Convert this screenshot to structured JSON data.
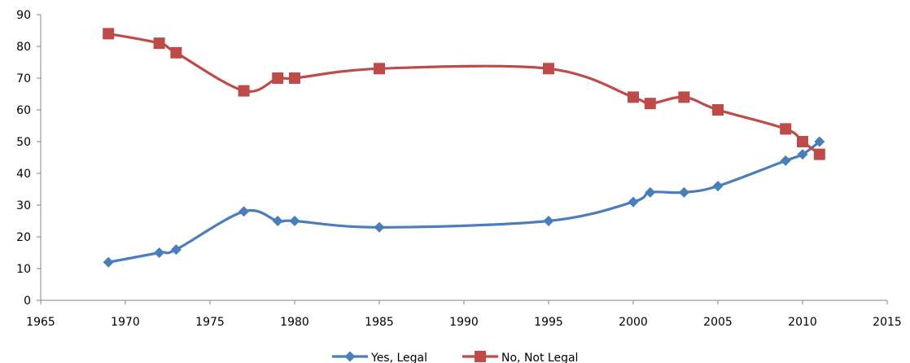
{
  "chart_data": {
    "type": "line",
    "title": "",
    "xlabel": "",
    "ylabel": "",
    "xlim": [
      1965,
      2015
    ],
    "ylim": [
      0,
      90
    ],
    "x_ticks": [
      "1965",
      "1970",
      "1975",
      "1980",
      "1985",
      "1990",
      "1995",
      "2000",
      "2005",
      "2010",
      "2015"
    ],
    "y_ticks": [
      "0",
      "10",
      "20",
      "30",
      "40",
      "50",
      "60",
      "70",
      "80",
      "90"
    ],
    "grid": false,
    "smooth": true,
    "legend_position": "bottom",
    "series": [
      {
        "name": "Yes, Legal",
        "color": "#4a7ebb",
        "marker": "diamond",
        "x": [
          1969,
          1972,
          1973,
          1977,
          1979,
          1980,
          1985,
          1995,
          2000,
          2001,
          2003,
          2005,
          2009,
          2010,
          2011
        ],
        "y": [
          12,
          15,
          16,
          28,
          25,
          25,
          23,
          25,
          31,
          34,
          34,
          36,
          44,
          46,
          50
        ]
      },
      {
        "name": "No, Not Legal",
        "color": "#be4b48",
        "marker": "square",
        "x": [
          1969,
          1972,
          1973,
          1977,
          1979,
          1980,
          1985,
          1995,
          2000,
          2001,
          2003,
          2005,
          2009,
          2010,
          2011
        ],
        "y": [
          84,
          81,
          78,
          66,
          70,
          70,
          73,
          73,
          64,
          62,
          64,
          60,
          54,
          50,
          46
        ]
      }
    ]
  }
}
